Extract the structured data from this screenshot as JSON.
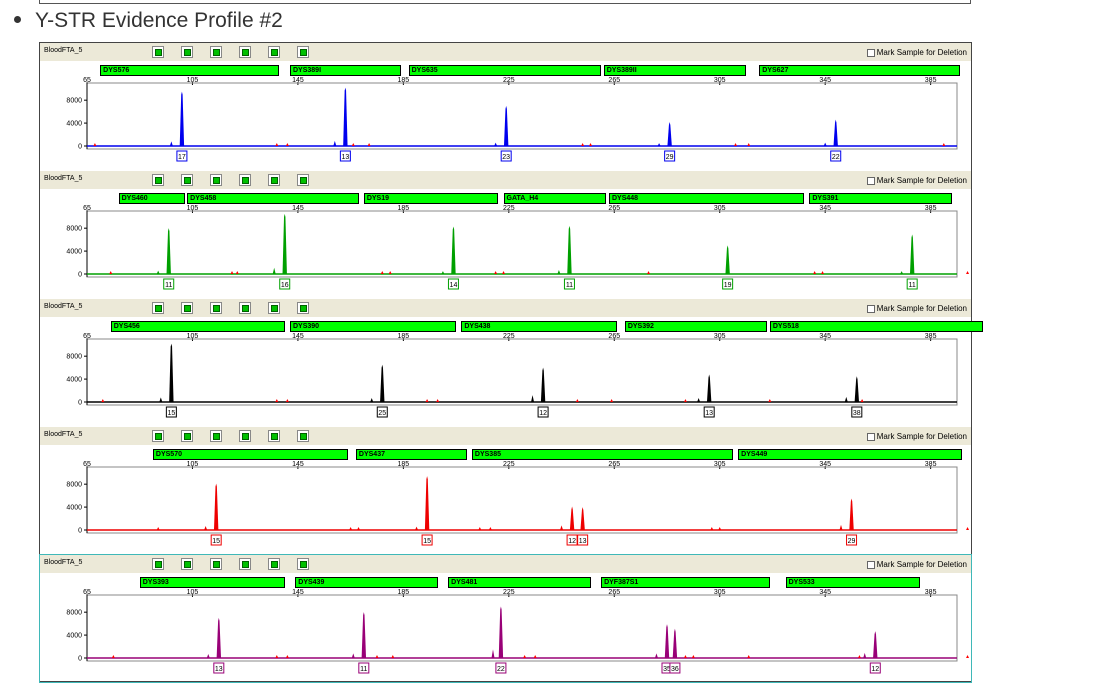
{
  "heading": {
    "title": "Y-STR Evidence Profile #2"
  },
  "mark_label": "Mark Sample for Deletion",
  "x_ticks": [
    "65",
    "105",
    "145",
    "185",
    "225",
    "265",
    "305",
    "345",
    "385"
  ],
  "y_ticks": [
    "8000",
    "4000",
    "0"
  ],
  "panels": [
    {
      "sample": "BloodFTA_5",
      "color": "#0000ee",
      "markers": [
        {
          "name": "DYS576",
          "x0": 70,
          "x1": 138
        },
        {
          "name": "DYS389I",
          "x0": 142,
          "x1": 184
        },
        {
          "name": "DYS635",
          "x0": 187,
          "x1": 260
        },
        {
          "name": "DYS389II",
          "x0": 261,
          "x1": 315
        },
        {
          "name": "DYS627",
          "x0": 320,
          "x1": 396
        }
      ],
      "peaks": [
        {
          "x": 101,
          "h": 9500,
          "label": "17"
        },
        {
          "x": 163,
          "h": 10200,
          "label": "13"
        },
        {
          "x": 224,
          "h": 7000,
          "label": "23"
        },
        {
          "x": 286,
          "h": 4200,
          "label": "29"
        },
        {
          "x": 349,
          "h": 4600,
          "label": "22"
        }
      ],
      "minor": [
        {
          "x": 97,
          "h": 800
        },
        {
          "x": 159,
          "h": 900
        },
        {
          "x": 220,
          "h": 600
        },
        {
          "x": 282,
          "h": 500
        },
        {
          "x": 345,
          "h": 600
        }
      ],
      "red": [
        68,
        137,
        141,
        166,
        172,
        253,
        256,
        311,
        316,
        390
      ]
    },
    {
      "sample": "BloodFTA_5",
      "color": "#00a000",
      "markers": [
        {
          "name": "DYS460",
          "x0": 77,
          "x1": 102
        },
        {
          "name": "DYS458",
          "x0": 103,
          "x1": 168
        },
        {
          "name": "DYS19",
          "x0": 170,
          "x1": 221
        },
        {
          "name": "GATA_H4",
          "x0": 223,
          "x1": 262
        },
        {
          "name": "DYS448",
          "x0": 263,
          "x1": 337
        },
        {
          "name": "DYS391",
          "x0": 339,
          "x1": 393
        }
      ],
      "peaks": [
        {
          "x": 96,
          "h": 8000,
          "label": "11"
        },
        {
          "x": 140,
          "h": 10500,
          "label": "16"
        },
        {
          "x": 204,
          "h": 8300,
          "label": "14"
        },
        {
          "x": 248,
          "h": 8400,
          "label": "11"
        },
        {
          "x": 308,
          "h": 5000,
          "label": "19"
        },
        {
          "x": 378,
          "h": 6900,
          "label": "11"
        }
      ],
      "minor": [
        {
          "x": 92,
          "h": 600
        },
        {
          "x": 136,
          "h": 1100
        },
        {
          "x": 200,
          "h": 500
        },
        {
          "x": 244,
          "h": 700
        },
        {
          "x": 374,
          "h": 500
        }
      ],
      "red": [
        74,
        120,
        122,
        177,
        180,
        220,
        223,
        278,
        341,
        344,
        399
      ]
    },
    {
      "sample": "BloodFTA_5",
      "color": "#000000",
      "markers": [
        {
          "name": "DYS456",
          "x0": 74,
          "x1": 140
        },
        {
          "name": "DYS390",
          "x0": 142,
          "x1": 205
        },
        {
          "name": "DYS438",
          "x0": 207,
          "x1": 266
        },
        {
          "name": "DYS392",
          "x0": 269,
          "x1": 323
        },
        {
          "name": "DYS518",
          "x0": 324,
          "x1": 405
        }
      ],
      "peaks": [
        {
          "x": 97,
          "h": 10200,
          "label": "15"
        },
        {
          "x": 177,
          "h": 6500,
          "label": "25"
        },
        {
          "x": 238,
          "h": 6000,
          "label": "12"
        },
        {
          "x": 301,
          "h": 4800,
          "label": "13"
        },
        {
          "x": 357,
          "h": 4500,
          "label": "38"
        }
      ],
      "minor": [
        {
          "x": 93,
          "h": 800
        },
        {
          "x": 173,
          "h": 700
        },
        {
          "x": 234,
          "h": 1200
        },
        {
          "x": 297,
          "h": 700
        },
        {
          "x": 353,
          "h": 900
        }
      ],
      "red": [
        71,
        137,
        141,
        194,
        198,
        251,
        264,
        292,
        324,
        359,
        408
      ]
    },
    {
      "sample": "BloodFTA_5",
      "color": "#ee0000",
      "markers": [
        {
          "name": "DYS570",
          "x0": 90,
          "x1": 164
        },
        {
          "name": "DYS437",
          "x0": 167,
          "x1": 209
        },
        {
          "name": "DYS385",
          "x0": 211,
          "x1": 310
        },
        {
          "name": "DYS449",
          "x0": 312,
          "x1": 397
        }
      ],
      "peaks": [
        {
          "x": 114,
          "h": 8100,
          "label": "15"
        },
        {
          "x": 194,
          "h": 9400,
          "label": "15"
        },
        {
          "x": 249,
          "h": 4100,
          "label": "12"
        },
        {
          "x": 253,
          "h": 4000,
          "label": "13"
        },
        {
          "x": 355,
          "h": 5500,
          "label": "29"
        }
      ],
      "minor": [
        {
          "x": 110,
          "h": 700
        },
        {
          "x": 190,
          "h": 600
        },
        {
          "x": 245,
          "h": 800
        },
        {
          "x": 351,
          "h": 900
        }
      ],
      "red": [
        92,
        165,
        168,
        214,
        218,
        302,
        305,
        399
      ]
    },
    {
      "sample": "BloodFTA_5",
      "color": "#990077",
      "markers": [
        {
          "name": "DYS393",
          "x0": 85,
          "x1": 140
        },
        {
          "name": "DYS439",
          "x0": 144,
          "x1": 198
        },
        {
          "name": "DYS481",
          "x0": 202,
          "x1": 256
        },
        {
          "name": "DYF387S1",
          "x0": 260,
          "x1": 324
        },
        {
          "name": "DYS533",
          "x0": 330,
          "x1": 381
        }
      ],
      "peaks": [
        {
          "x": 115,
          "h": 7000,
          "label": "13"
        },
        {
          "x": 170,
          "h": 8000,
          "label": "11"
        },
        {
          "x": 222,
          "h": 9000,
          "label": "22"
        },
        {
          "x": 285,
          "h": 5900,
          "label": "35"
        },
        {
          "x": 288,
          "h": 5100,
          "label": "36"
        },
        {
          "x": 364,
          "h": 4700,
          "label": "12"
        }
      ],
      "minor": [
        {
          "x": 111,
          "h": 700
        },
        {
          "x": 166,
          "h": 800
        },
        {
          "x": 219,
          "h": 1500
        },
        {
          "x": 281,
          "h": 800
        },
        {
          "x": 360,
          "h": 900
        }
      ],
      "red": [
        75,
        137,
        141,
        175,
        181,
        231,
        235,
        292,
        295,
        316,
        358,
        399
      ]
    }
  ]
}
